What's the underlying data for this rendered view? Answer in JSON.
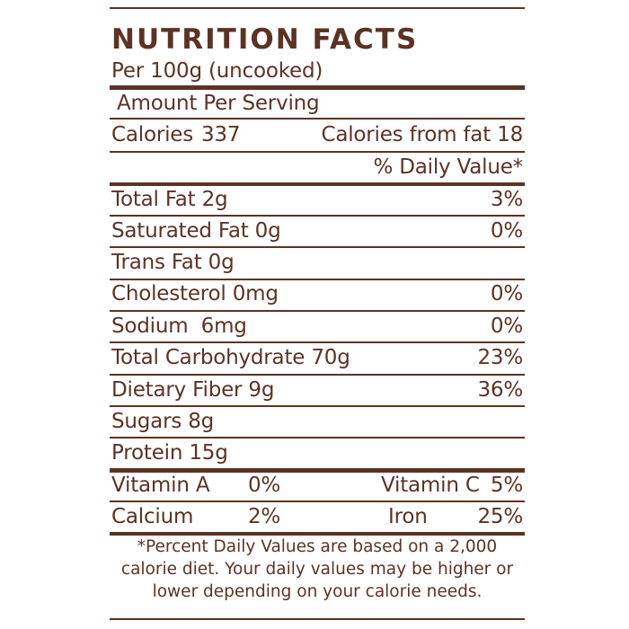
{
  "title": "NUTRITION FACTS",
  "serving": "Per 100g (uncooked)",
  "amount_per_serving": "Amount Per Serving",
  "calories": {
    "label": "Calories",
    "value": "337",
    "from_fat": "Calories from fat 18"
  },
  "daily_value_header": "% Daily Value*",
  "nutrients": [
    {
      "label": "Total Fat 2g",
      "dv": "3%"
    },
    {
      "label": "Saturated Fat 0g",
      "dv": "0%"
    },
    {
      "label": "Trans Fat 0g",
      "dv": ""
    },
    {
      "label": "Cholesterol 0mg",
      "dv": "0%"
    },
    {
      "label": "Sodium  6mg",
      "dv": "0%"
    },
    {
      "label": "Total Carbohydrate 70g",
      "dv": "23%"
    },
    {
      "label": "Dietary Fiber 9g",
      "dv": "36%"
    },
    {
      "label": "Sugars 8g",
      "dv": ""
    },
    {
      "label": "Protein 15g",
      "dv": ""
    }
  ],
  "vitamins": [
    {
      "label": "Vitamin A",
      "value": "0%",
      "label2": "Vitamin C",
      "value2": "5%"
    },
    {
      "label": "Calcium",
      "value": "2%",
      "label2": "Iron",
      "value2": "25%"
    }
  ],
  "footnote": [
    "*Percent Daily Values are based on a 2,000",
    "calorie diet. Your daily values may be higher or",
    "lower depending on your calorie needs."
  ],
  "colors": {
    "text": "#5b3324",
    "background": "#ffffff"
  }
}
